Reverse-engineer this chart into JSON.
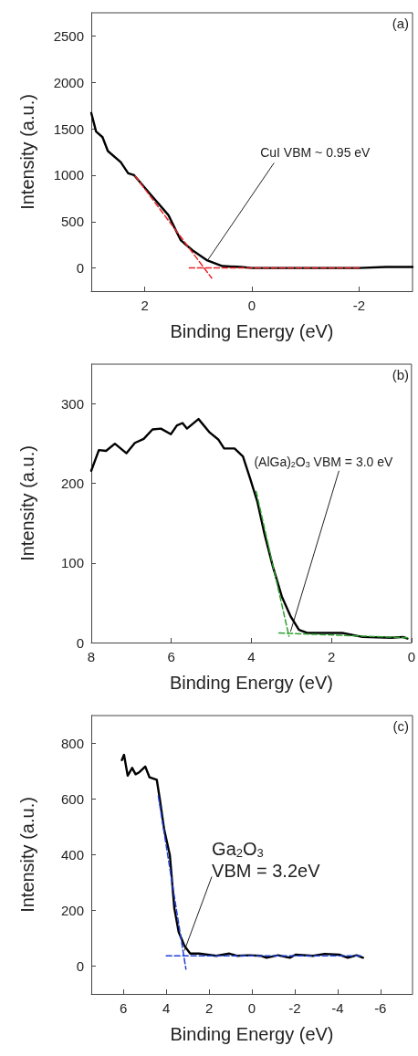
{
  "chart_data": [
    {
      "type": "line",
      "xlabel": "Binding Energy (eV)",
      "ylabel": "Intensity (a.u.)",
      "xlim": [
        3,
        -3
      ],
      "xticks": [
        2,
        0,
        -2
      ],
      "ylim": [
        -250,
        2750
      ],
      "yticks": [
        0,
        500,
        1000,
        1500,
        2000,
        2500
      ],
      "marker": "none",
      "grid": false,
      "annotations": [
        "(a)",
        {
          "text": "CuI VBM ~ 0.95 eV",
          "x": 0.83,
          "y": 80
        }
      ],
      "series": [
        {
          "color": "#000000",
          "x": [
            3,
            2.91,
            2.79,
            2.69,
            2.45,
            2.31,
            2.2,
            1.89,
            1.56,
            1.33,
            1.11,
            0.83,
            0.55,
            0.21,
            0,
            -1,
            -2,
            -2.5,
            -3
          ],
          "values": [
            1670,
            1470,
            1410,
            1260,
            1140,
            1020,
            1000,
            790,
            570,
            300,
            190,
            80,
            20,
            10,
            0,
            0,
            0,
            10,
            10
          ]
        },
        {
          "color": "#e8262a",
          "line_style": "dashed",
          "x": [
            2.18,
            0.75
          ],
          "values": [
            990,
            -110
          ]
        },
        {
          "color": "#e8262a",
          "line_style": "dashed",
          "x": [
            1.17,
            -2.03
          ],
          "values": [
            0,
            0
          ]
        }
      ]
    },
    {
      "type": "line",
      "xlabel": "Binding Energy (eV)",
      "ylabel": "Intensity (a.u.)",
      "xlim": [
        8,
        0
      ],
      "xticks": [
        8,
        6,
        4,
        2,
        0
      ],
      "ylim": [
        0,
        350
      ],
      "yticks": [
        0,
        100,
        200,
        300
      ],
      "marker": "none",
      "grid": false,
      "annotations": [
        "(b)",
        {
          "text": "(AlGa)$_{2}$O$_{3}$ VBM = 3.0 eV",
          "x": 3.02,
          "y": 14
        }
      ],
      "series": [
        {
          "color": "#000000",
          "x": [
            8,
            7.81,
            7.63,
            7.41,
            7.12,
            6.91,
            6.69,
            6.47,
            6.26,
            6.01,
            5.86,
            5.72,
            5.61,
            5.32,
            5.04,
            4.82,
            4.68,
            4.42,
            4.21,
            4.03,
            3.85,
            3.67,
            3.46,
            3.24,
            3.02,
            2.81,
            2.59,
            1.94,
            1.73,
            1.22,
            0.5,
            0.21,
            0.1
          ],
          "values": [
            216,
            242,
            241,
            250,
            238,
            251,
            256,
            268,
            269,
            262,
            273,
            276,
            269,
            281,
            264,
            255,
            244,
            244,
            234,
            206,
            177,
            136,
            95,
            58,
            33,
            16,
            12,
            12,
            12,
            7,
            6,
            7,
            5
          ]
        },
        {
          "color": "#2ca02c",
          "line_style": "dashed",
          "x": [
            3.88,
            3.06
          ],
          "values": [
            190,
            8
          ]
        },
        {
          "color": "#2ca02c",
          "line_style": "dashed",
          "x": [
            3.31,
            0.1
          ],
          "values": [
            12,
            6
          ]
        }
      ]
    },
    {
      "type": "line",
      "xlabel": "Binding Energy (eV)",
      "ylabel": "Intensity (a.u.)",
      "xlim": [
        7.5,
        -7.5
      ],
      "xticks": [
        6,
        4,
        2,
        0,
        -2,
        -4,
        -6
      ],
      "ylim": [
        -100,
        900
      ],
      "yticks": [
        0,
        200,
        400,
        600,
        800
      ],
      "marker": "none",
      "grid": false,
      "annotations": [
        "(c)",
        {
          "text": "Ga$_{2}$O$_{3}$\nVBM = 3.2eV",
          "x": 3.15,
          "y": 56
        }
      ],
      "series": [
        {
          "color": "#000000",
          "x": [
            6.07,
            5.97,
            5.8,
            5.59,
            5.43,
            5.25,
            4.98,
            4.78,
            4.44,
            4.3,
            4.1,
            3.83,
            3.62,
            3.42,
            3.15,
            2.88,
            2.47,
            2.07,
            1.66,
            1.05,
            0.71,
            0.14,
            -0.41,
            -0.68,
            -1.22,
            -1.77,
            -2.04,
            -2.85,
            -3.4,
            -4.08,
            -4.48,
            -4.89,
            -5.19
          ],
          "values": [
            740,
            759,
            684,
            712,
            689,
            697,
            717,
            678,
            669,
            600,
            493,
            398,
            207,
            123,
            73,
            45,
            45,
            41,
            37,
            45,
            37,
            39,
            37,
            30,
            39,
            30,
            41,
            37,
            44,
            41,
            30,
            39,
            30
          ]
        },
        {
          "color": "#1f3fd6",
          "line_style": "dashed",
          "x": [
            4.37,
            3.08
          ],
          "values": [
            611,
            -11
          ]
        },
        {
          "color": "#1f3fd6",
          "line_style": "dashed",
          "x": [
            4.0,
            -5.17
          ],
          "values": [
            37,
            37
          ]
        }
      ]
    }
  ]
}
